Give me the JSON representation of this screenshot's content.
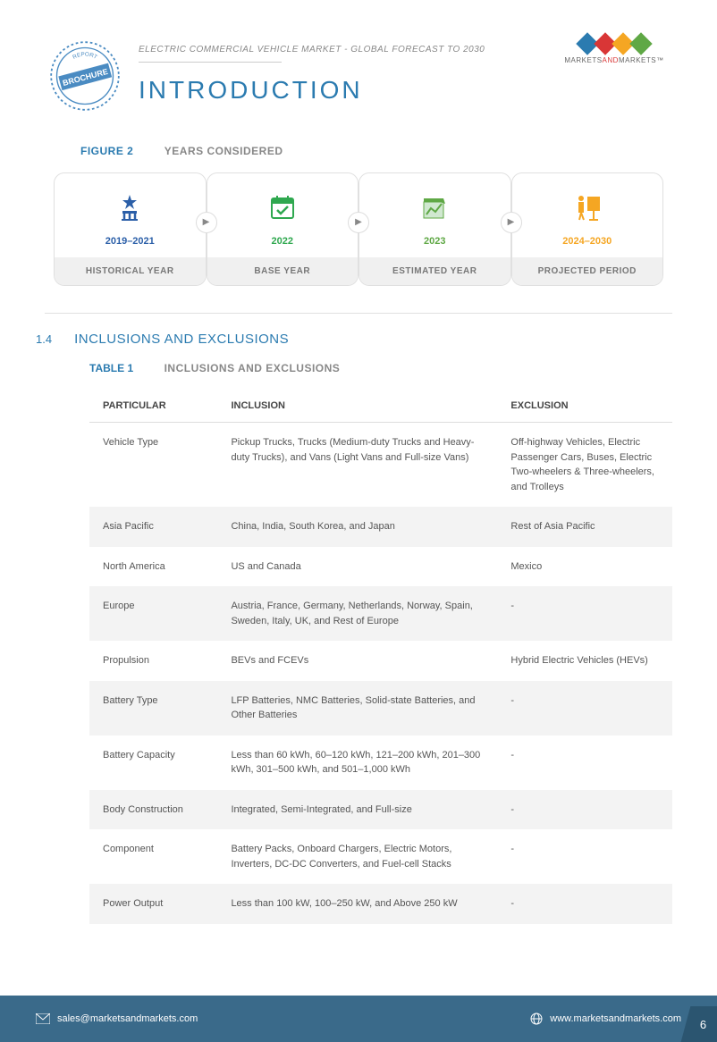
{
  "header": {
    "subtitle": "ELECTRIC COMMERCIAL VEHICLE MARKET - GLOBAL FORECAST TO 2030",
    "title": "INTRODUCTION",
    "brochure_text": "BROCHURE",
    "brochure_sub": "REPORT"
  },
  "logo": {
    "text_left": "MARKETS",
    "text_mid": "AND",
    "text_right": "MARKETS",
    "tm": "™",
    "colors": [
      "#2b7bb0",
      "#d93636",
      "#f5a623",
      "#5fa845"
    ]
  },
  "figure2": {
    "label": "FIGURE 2",
    "title": "YEARS CONSIDERED",
    "cards": [
      {
        "year": "2019–2021",
        "label": "HISTORICAL YEAR",
        "color": "#2b5fa8",
        "icon": "wizard"
      },
      {
        "year": "2022",
        "label": "BASE YEAR",
        "color": "#2fa84f",
        "icon": "calendar"
      },
      {
        "year": "2023",
        "label": "ESTIMATED YEAR",
        "color": "#5fa845",
        "icon": "chart"
      },
      {
        "year": "2024–2030",
        "label": "PROJECTED PERIOD",
        "color": "#f5a623",
        "icon": "present"
      }
    ]
  },
  "section": {
    "num": "1.4",
    "title": "INCLUSIONS AND EXCLUSIONS"
  },
  "table1": {
    "label": "TABLE 1",
    "title": "INCLUSIONS AND EXCLUSIONS",
    "columns": [
      "PARTICULAR",
      "INCLUSION",
      "EXCLUSION"
    ],
    "rows": [
      {
        "p": "Vehicle Type",
        "i": "Pickup Trucks, Trucks (Medium-duty Trucks and Heavy-duty Trucks), and Vans (Light Vans and Full-size Vans)",
        "e": "Off-highway Vehicles, Electric Passenger Cars, Buses, Electric Two-wheelers & Three-wheelers, and Trolleys"
      },
      {
        "p": "Asia Pacific",
        "i": "China, India, South Korea, and Japan",
        "e": "Rest of Asia Pacific"
      },
      {
        "p": "North America",
        "i": "US and Canada",
        "e": "Mexico"
      },
      {
        "p": "Europe",
        "i": "Austria, France, Germany, Netherlands, Norway, Spain, Sweden, Italy, UK, and Rest of Europe",
        "e": "-"
      },
      {
        "p": "Propulsion",
        "i": "BEVs and FCEVs",
        "e": "Hybrid Electric Vehicles (HEVs)"
      },
      {
        "p": "Battery Type",
        "i": "LFP Batteries, NMC Batteries, Solid-state Batteries, and Other Batteries",
        "e": "-"
      },
      {
        "p": "Battery Capacity",
        "i": "Less than 60 kWh, 60–120 kWh, 121–200 kWh, 201–300 kWh, 301–500 kWh, and 501–1,000 kWh",
        "e": "-"
      },
      {
        "p": "Body Construction",
        "i": "Integrated, Semi-Integrated, and Full-size",
        "e": "-"
      },
      {
        "p": "Component",
        "i": "Battery Packs, Onboard Chargers, Electric Motors, Inverters, DC-DC Converters, and Fuel-cell Stacks",
        "e": "-"
      },
      {
        "p": "Power Output",
        "i": "Less than 100 kW, 100–250 kW, and Above 250 kW",
        "e": "-"
      }
    ]
  },
  "footer": {
    "email": "sales@marketsandmarkets.com",
    "website": "www.marketsandmarkets.com",
    "page": "6"
  }
}
